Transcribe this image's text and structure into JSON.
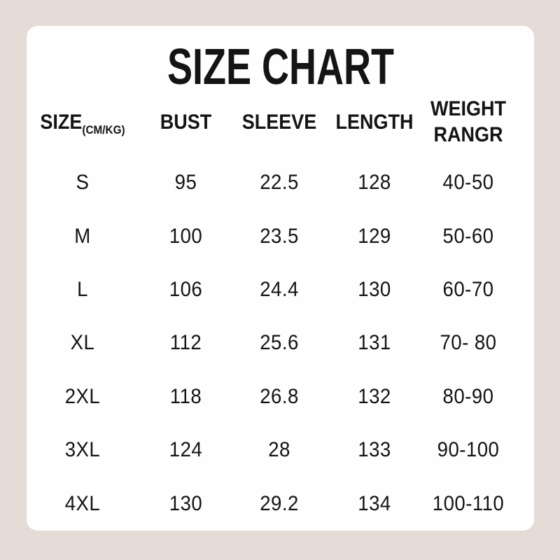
{
  "colors": {
    "page_background": "#e5dcd8",
    "card_background": "#fefefe",
    "text": "#141414"
  },
  "title": "SIZE CHART",
  "header": {
    "size": "SIZE",
    "size_unit": "(CM/KG)",
    "bust": "BUST",
    "sleeve": "SLEEVE",
    "length": "LENGTH",
    "weight_line1": "WEIGHT",
    "weight_line2": "RANGR"
  },
  "chart_data": {
    "type": "table",
    "title": "SIZE CHART",
    "unit_note": "(CM/KG)",
    "columns": [
      "SIZE",
      "BUST",
      "SLEEVE",
      "LENGTH",
      "WEIGHT RANGR"
    ],
    "rows": [
      [
        "S",
        "95",
        "22.5",
        "128",
        "40-50"
      ],
      [
        "M",
        "100",
        "23.5",
        "129",
        "50-60"
      ],
      [
        "L",
        "106",
        "24.4",
        "130",
        "60-70"
      ],
      [
        "XL",
        "112",
        "25.6",
        "131",
        "70- 80"
      ],
      [
        "2XL",
        "118",
        "26.8",
        "132",
        "80-90"
      ],
      [
        "3XL",
        "124",
        "28",
        "133",
        "90-100"
      ],
      [
        "4XL",
        "130",
        "29.2",
        "134",
        "100-110"
      ]
    ]
  }
}
